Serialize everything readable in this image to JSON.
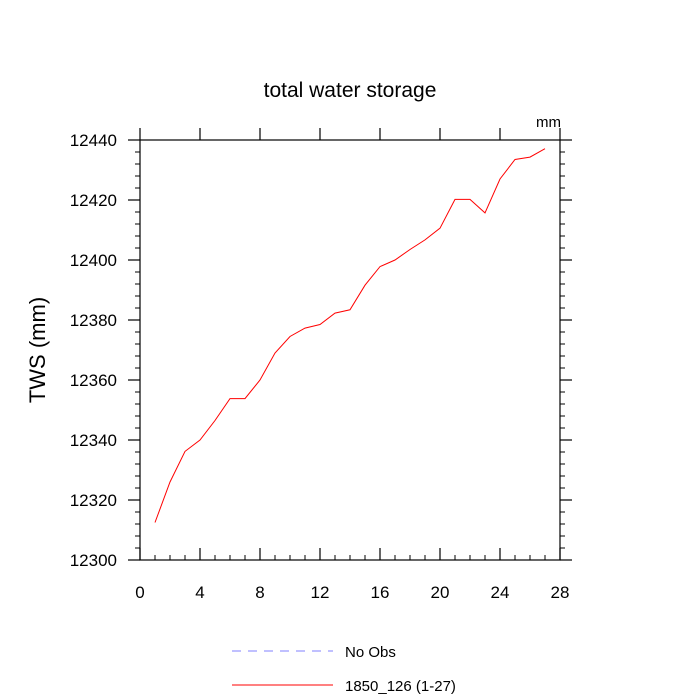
{
  "chart_data": {
    "type": "line",
    "title": "total water storage",
    "units": "mm",
    "xlabel": "",
    "ylabel": "TWS  (mm)",
    "xlim": [
      0,
      28
    ],
    "ylim": [
      12300,
      12440
    ],
    "xticks": [
      0,
      4,
      8,
      12,
      16,
      20,
      24,
      28
    ],
    "yticks": [
      12300,
      12320,
      12340,
      12360,
      12380,
      12400,
      12420,
      12440
    ],
    "grid": false,
    "legend_position": "bottom",
    "series": [
      {
        "name": "No Obs",
        "color": "#8080ff",
        "dash": "dashed",
        "x": [],
        "y": []
      },
      {
        "name": "1850_126 (1-27)",
        "color": "#ff0000",
        "dash": "solid",
        "x": [
          1,
          2,
          3,
          4,
          5,
          6,
          7,
          8,
          9,
          10,
          11,
          12,
          13,
          14,
          15,
          16,
          17,
          18,
          19,
          20,
          21,
          22,
          23,
          24,
          25,
          26,
          27
        ],
        "y": [
          12312.5,
          12326,
          12336.2,
          12340,
          12346.5,
          12353.8,
          12353.8,
          12360,
          12369,
          12374.5,
          12377.3,
          12378.5,
          12382.3,
          12383.4,
          12391.6,
          12397.8,
          12400,
          12403.5,
          12406.7,
          12410.6,
          12420.2,
          12420.2,
          12415.7,
          12427,
          12433.5,
          12434.3,
          12437.1
        ]
      }
    ]
  }
}
